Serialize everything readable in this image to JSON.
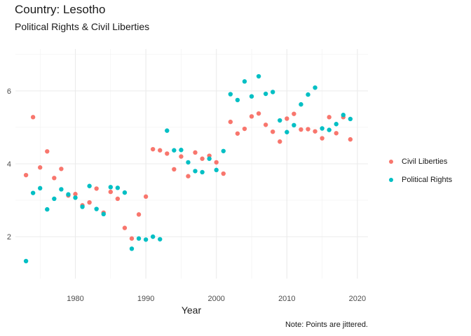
{
  "chart_data": {
    "type": "scatter",
    "title": "Country: Lesotho",
    "subtitle": "Political Rights & Civil Liberties",
    "xlabel": "Year",
    "ylabel": "",
    "caption": "Note: Points are jittered.",
    "xlim": [
      1971.5,
      2021.5
    ],
    "ylim": [
      0.85,
      7.15
    ],
    "xticks": [
      1980,
      1990,
      2000,
      2010,
      2020
    ],
    "xminor": [
      1975,
      1985,
      1995,
      2005,
      2015
    ],
    "yticks": [
      2,
      4,
      6
    ],
    "yminor": [
      3,
      5,
      7
    ],
    "series": [
      {
        "name": "Civil Liberties",
        "color": "#F8766D",
        "points": [
          [
            1973,
            3.69
          ],
          [
            1974,
            5.28
          ],
          [
            1975,
            3.9
          ],
          [
            1976,
            4.34
          ],
          [
            1977,
            3.61
          ],
          [
            1978,
            3.86
          ],
          [
            1979,
            3.13
          ],
          [
            1980,
            3.17
          ],
          [
            1981,
            2.86
          ],
          [
            1982,
            2.94
          ],
          [
            1983,
            3.32
          ],
          [
            1984,
            2.66
          ],
          [
            1985,
            3.23
          ],
          [
            1986,
            3.04
          ],
          [
            1987,
            2.24
          ],
          [
            1988,
            1.95
          ],
          [
            1989,
            2.61
          ],
          [
            1990,
            3.1
          ],
          [
            1991,
            4.4
          ],
          [
            1992,
            4.37
          ],
          [
            1993,
            4.28
          ],
          [
            1994,
            3.85
          ],
          [
            1995,
            4.2
          ],
          [
            1996,
            3.66
          ],
          [
            1997,
            4.31
          ],
          [
            1998,
            4.14
          ],
          [
            1999,
            4.22
          ],
          [
            2000,
            4.04
          ],
          [
            2001,
            3.73
          ],
          [
            2002,
            5.15
          ],
          [
            2003,
            4.83
          ],
          [
            2004,
            4.96
          ],
          [
            2005,
            5.3
          ],
          [
            2006,
            5.38
          ],
          [
            2007,
            5.07
          ],
          [
            2008,
            4.88
          ],
          [
            2009,
            4.61
          ],
          [
            2010,
            5.24
          ],
          [
            2011,
            5.37
          ],
          [
            2012,
            4.94
          ],
          [
            2013,
            4.95
          ],
          [
            2014,
            4.89
          ],
          [
            2015,
            4.7
          ],
          [
            2016,
            5.28
          ],
          [
            2017,
            4.84
          ],
          [
            2018,
            5.28
          ],
          [
            2019,
            4.67
          ]
        ]
      },
      {
        "name": "Political Rights",
        "color": "#00BFC4",
        "points": [
          [
            1973,
            1.33
          ],
          [
            1974,
            3.2
          ],
          [
            1975,
            3.33
          ],
          [
            1976,
            2.75
          ],
          [
            1977,
            3.04
          ],
          [
            1978,
            3.3
          ],
          [
            1979,
            3.16
          ],
          [
            1980,
            3.07
          ],
          [
            1981,
            2.82
          ],
          [
            1982,
            3.39
          ],
          [
            1983,
            2.76
          ],
          [
            1984,
            2.62
          ],
          [
            1985,
            3.36
          ],
          [
            1986,
            3.34
          ],
          [
            1987,
            3.21
          ],
          [
            1988,
            1.67
          ],
          [
            1989,
            1.95
          ],
          [
            1990,
            1.92
          ],
          [
            1991,
            2.0
          ],
          [
            1992,
            1.93
          ],
          [
            1993,
            4.91
          ],
          [
            1994,
            4.37
          ],
          [
            1995,
            4.38
          ],
          [
            1996,
            4.04
          ],
          [
            1997,
            3.8
          ],
          [
            1998,
            3.77
          ],
          [
            1999,
            4.14
          ],
          [
            2000,
            3.83
          ],
          [
            2001,
            4.35
          ],
          [
            2002,
            5.91
          ],
          [
            2003,
            5.75
          ],
          [
            2004,
            6.26
          ],
          [
            2005,
            5.85
          ],
          [
            2006,
            6.4
          ],
          [
            2007,
            5.92
          ],
          [
            2008,
            5.97
          ],
          [
            2009,
            5.19
          ],
          [
            2010,
            4.87
          ],
          [
            2011,
            5.06
          ],
          [
            2012,
            5.63
          ],
          [
            2013,
            5.9
          ],
          [
            2014,
            6.09
          ],
          [
            2015,
            4.97
          ],
          [
            2016,
            4.93
          ],
          [
            2017,
            5.09
          ],
          [
            2018,
            5.34
          ],
          [
            2019,
            5.23
          ]
        ]
      }
    ]
  }
}
